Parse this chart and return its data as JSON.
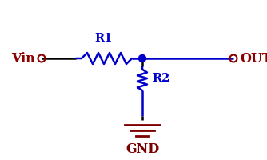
{
  "wire_color_blue": "#0000CC",
  "wire_color_black": "#000000",
  "label_color": "#8B0000",
  "resistor_color": "#0000CC",
  "ground_color": "#7B0000",
  "node_color": "#0000CC",
  "background": "#ffffff",
  "vin_label": "Vin",
  "out_label": "OUT",
  "r1_label": "R1",
  "r2_label": "R2",
  "gnd_label": "GND",
  "figsize": [
    3.34,
    2.0
  ],
  "dpi": 100,
  "xlim": [
    0,
    334
  ],
  "ylim": [
    0,
    200
  ]
}
